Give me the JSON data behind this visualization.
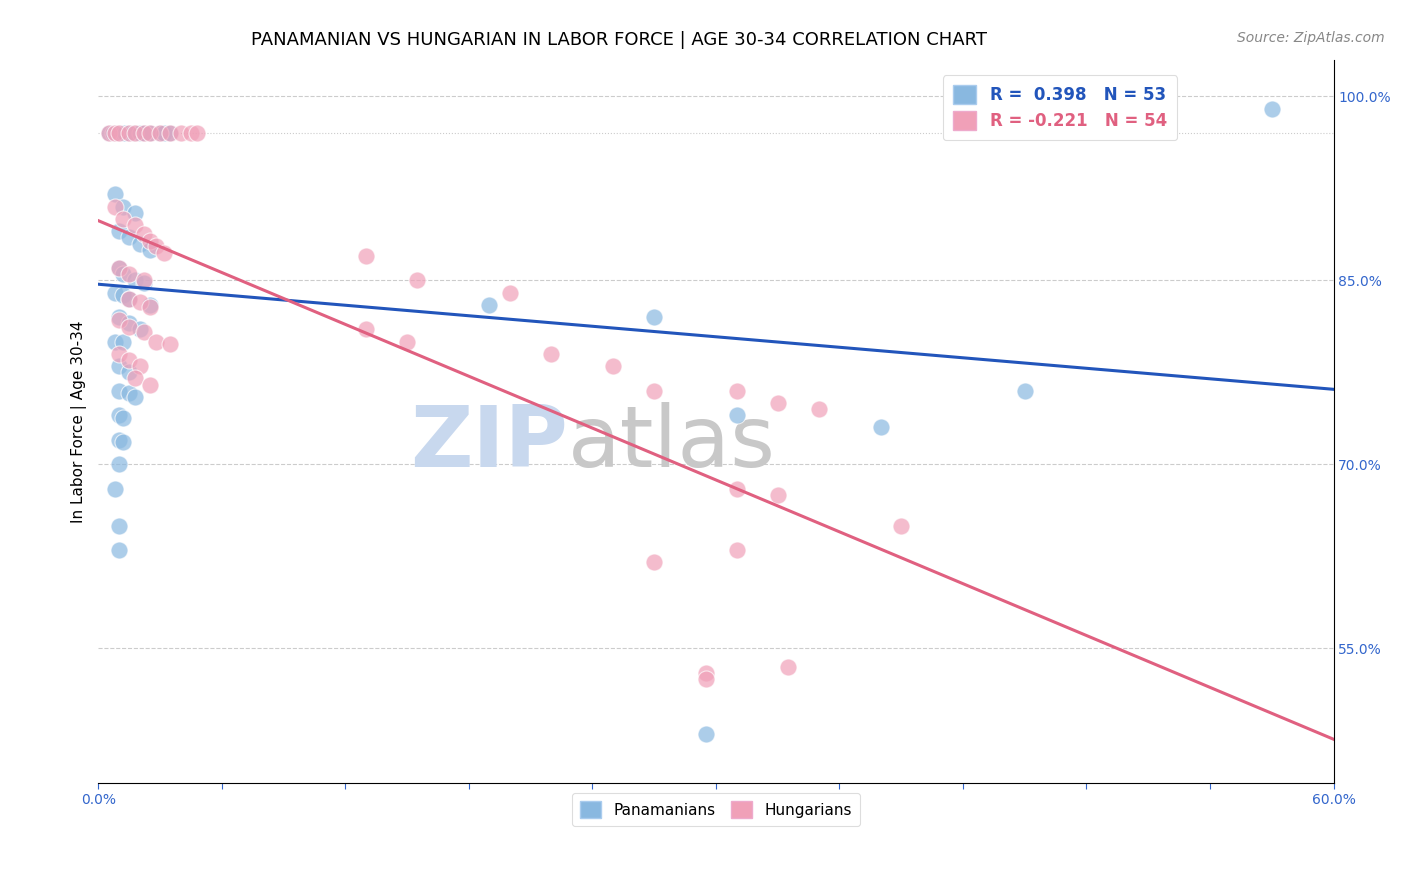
{
  "title": "PANAMANIAN VS HUNGARIAN IN LABOR FORCE | AGE 30-34 CORRELATION CHART",
  "source_text": "Source: ZipAtlas.com",
  "ylabel": "In Labor Force | Age 30-34",
  "xlim": [
    0.0,
    0.6
  ],
  "ylim": [
    0.44,
    1.03
  ],
  "xticks": [
    0.0,
    0.06,
    0.12,
    0.18,
    0.24,
    0.3,
    0.36,
    0.42,
    0.48,
    0.54,
    0.6
  ],
  "xticklabels": [
    "0.0%",
    "",
    "",
    "",
    "",
    "",
    "",
    "",
    "",
    "",
    "60.0%"
  ],
  "yticks_right": [
    0.55,
    0.7,
    0.85,
    1.0
  ],
  "yticklabels_right": [
    "55.0%",
    "70.0%",
    "85.0%",
    "100.0%"
  ],
  "grid_color": "#cccccc",
  "background_color": "#ffffff",
  "watermark_zip": "ZIP",
  "watermark_atlas": "atlas",
  "watermark_color_zip": "#c8d8ee",
  "watermark_color_atlas": "#c8c8c8",
  "legend_line1": "R =  0.398   N = 53",
  "legend_line2": "R = -0.221   N = 54",
  "legend_label1": "Panamanians",
  "legend_label2": "Hungarians",
  "blue_color": "#89b8e0",
  "pink_color": "#f0a0b8",
  "blue_line_color": "#2255bb",
  "pink_line_color": "#e06080",
  "title_fontsize": 13,
  "axis_label_fontsize": 11,
  "tick_fontsize": 10,
  "source_fontsize": 10,
  "blue_scatter": [
    [
      0.005,
      0.97
    ],
    [
      0.007,
      0.97
    ],
    [
      0.01,
      0.97
    ],
    [
      0.012,
      0.97
    ],
    [
      0.013,
      0.97
    ],
    [
      0.015,
      0.97
    ],
    [
      0.017,
      0.97
    ],
    [
      0.02,
      0.97
    ],
    [
      0.022,
      0.97
    ],
    [
      0.025,
      0.97
    ],
    [
      0.03,
      0.97
    ],
    [
      0.032,
      0.97
    ],
    [
      0.035,
      0.97
    ],
    [
      0.008,
      0.92
    ],
    [
      0.012,
      0.91
    ],
    [
      0.018,
      0.905
    ],
    [
      0.01,
      0.89
    ],
    [
      0.015,
      0.885
    ],
    [
      0.02,
      0.88
    ],
    [
      0.025,
      0.875
    ],
    [
      0.01,
      0.86
    ],
    [
      0.012,
      0.855
    ],
    [
      0.018,
      0.85
    ],
    [
      0.022,
      0.848
    ],
    [
      0.008,
      0.84
    ],
    [
      0.012,
      0.838
    ],
    [
      0.015,
      0.835
    ],
    [
      0.01,
      0.82
    ],
    [
      0.015,
      0.815
    ],
    [
      0.02,
      0.81
    ],
    [
      0.008,
      0.8
    ],
    [
      0.012,
      0.8
    ],
    [
      0.01,
      0.78
    ],
    [
      0.015,
      0.775
    ],
    [
      0.01,
      0.76
    ],
    [
      0.015,
      0.758
    ],
    [
      0.018,
      0.755
    ],
    [
      0.01,
      0.74
    ],
    [
      0.012,
      0.738
    ],
    [
      0.01,
      0.72
    ],
    [
      0.012,
      0.718
    ],
    [
      0.01,
      0.7
    ],
    [
      0.025,
      0.83
    ],
    [
      0.19,
      0.83
    ],
    [
      0.27,
      0.82
    ],
    [
      0.008,
      0.68
    ],
    [
      0.01,
      0.65
    ],
    [
      0.01,
      0.63
    ],
    [
      0.38,
      0.73
    ],
    [
      0.31,
      0.74
    ],
    [
      0.45,
      0.76
    ],
    [
      0.57,
      0.99
    ],
    [
      0.295,
      0.48
    ]
  ],
  "pink_scatter": [
    [
      0.005,
      0.97
    ],
    [
      0.008,
      0.97
    ],
    [
      0.01,
      0.97
    ],
    [
      0.015,
      0.97
    ],
    [
      0.018,
      0.97
    ],
    [
      0.022,
      0.97
    ],
    [
      0.025,
      0.97
    ],
    [
      0.03,
      0.97
    ],
    [
      0.035,
      0.97
    ],
    [
      0.04,
      0.97
    ],
    [
      0.045,
      0.97
    ],
    [
      0.048,
      0.97
    ],
    [
      0.008,
      0.91
    ],
    [
      0.012,
      0.9
    ],
    [
      0.018,
      0.895
    ],
    [
      0.022,
      0.888
    ],
    [
      0.025,
      0.882
    ],
    [
      0.028,
      0.878
    ],
    [
      0.032,
      0.872
    ],
    [
      0.01,
      0.86
    ],
    [
      0.015,
      0.855
    ],
    [
      0.022,
      0.85
    ],
    [
      0.015,
      0.835
    ],
    [
      0.02,
      0.832
    ],
    [
      0.025,
      0.828
    ],
    [
      0.01,
      0.818
    ],
    [
      0.015,
      0.812
    ],
    [
      0.022,
      0.808
    ],
    [
      0.028,
      0.8
    ],
    [
      0.035,
      0.798
    ],
    [
      0.01,
      0.79
    ],
    [
      0.015,
      0.785
    ],
    [
      0.02,
      0.78
    ],
    [
      0.018,
      0.77
    ],
    [
      0.025,
      0.765
    ],
    [
      0.13,
      0.87
    ],
    [
      0.155,
      0.85
    ],
    [
      0.2,
      0.84
    ],
    [
      0.13,
      0.81
    ],
    [
      0.15,
      0.8
    ],
    [
      0.22,
      0.79
    ],
    [
      0.25,
      0.78
    ],
    [
      0.27,
      0.76
    ],
    [
      0.31,
      0.76
    ],
    [
      0.33,
      0.75
    ],
    [
      0.35,
      0.745
    ],
    [
      0.31,
      0.68
    ],
    [
      0.33,
      0.675
    ],
    [
      0.39,
      0.65
    ],
    [
      0.27,
      0.62
    ],
    [
      0.31,
      0.63
    ],
    [
      0.335,
      0.535
    ],
    [
      0.295,
      0.53
    ],
    [
      0.295,
      0.525
    ]
  ]
}
